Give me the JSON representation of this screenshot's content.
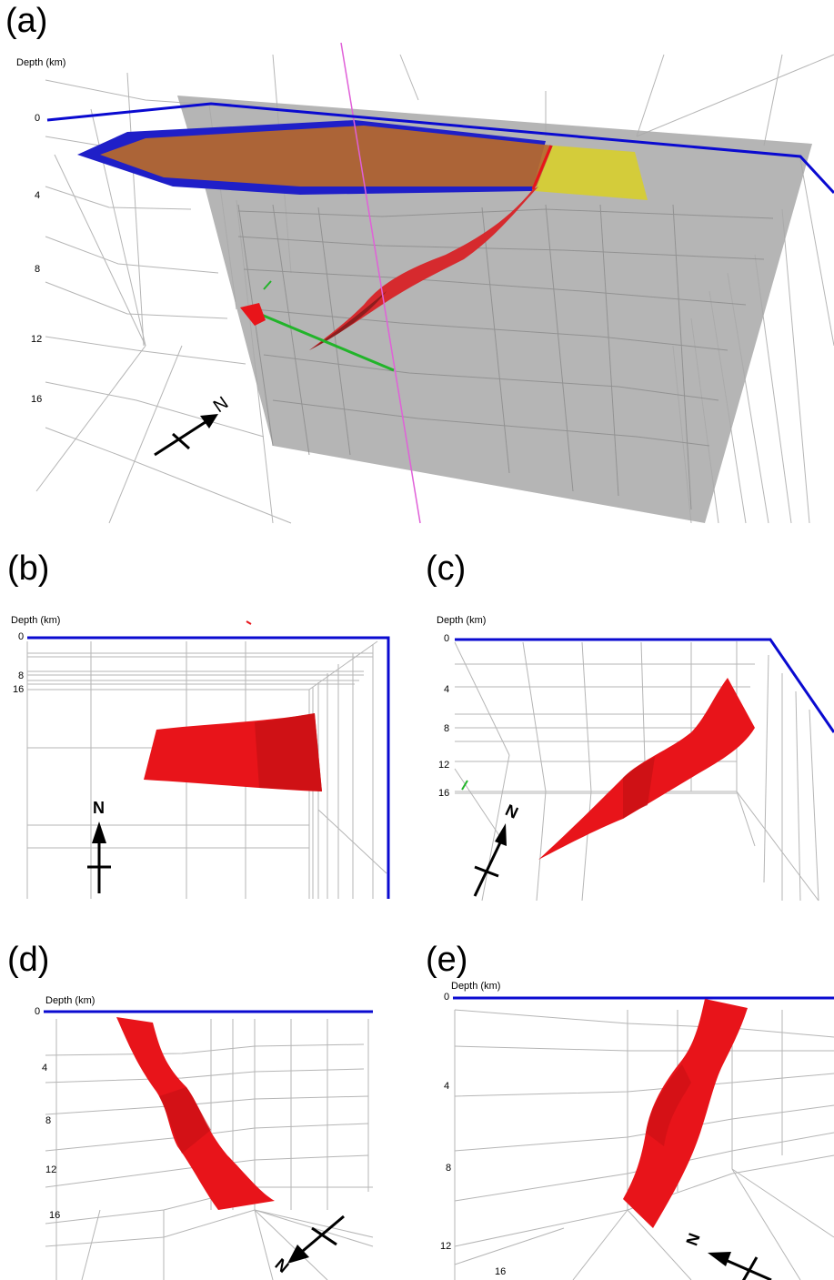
{
  "colors": {
    "frame": "#0a0ad0",
    "fault": "#e8141a",
    "plane": "#a8a8a8",
    "green_line": "#22b42a",
    "magenta_line": "#e060d8",
    "orange_layer": "#b86a2a",
    "yellow_layer": "#d4cc3a",
    "grid": "#b5b5b5"
  },
  "depth_axis_label": "Depth (km)",
  "north_symbol": "N",
  "panels": {
    "a": {
      "label": "(a)",
      "ticks": [
        "0",
        "4",
        "8",
        "12",
        "16"
      ]
    },
    "b": {
      "label": "(b)",
      "ticks": [
        "0",
        "8",
        "16"
      ]
    },
    "c": {
      "label": "(c)",
      "ticks": [
        "0",
        "4",
        "8",
        "12",
        "16"
      ]
    },
    "d": {
      "label": "(d)",
      "ticks": [
        "0",
        "4",
        "8",
        "12",
        "16"
      ]
    },
    "e": {
      "label": "(e)",
      "ticks": [
        "0",
        "4",
        "8",
        "12",
        "16"
      ]
    }
  }
}
